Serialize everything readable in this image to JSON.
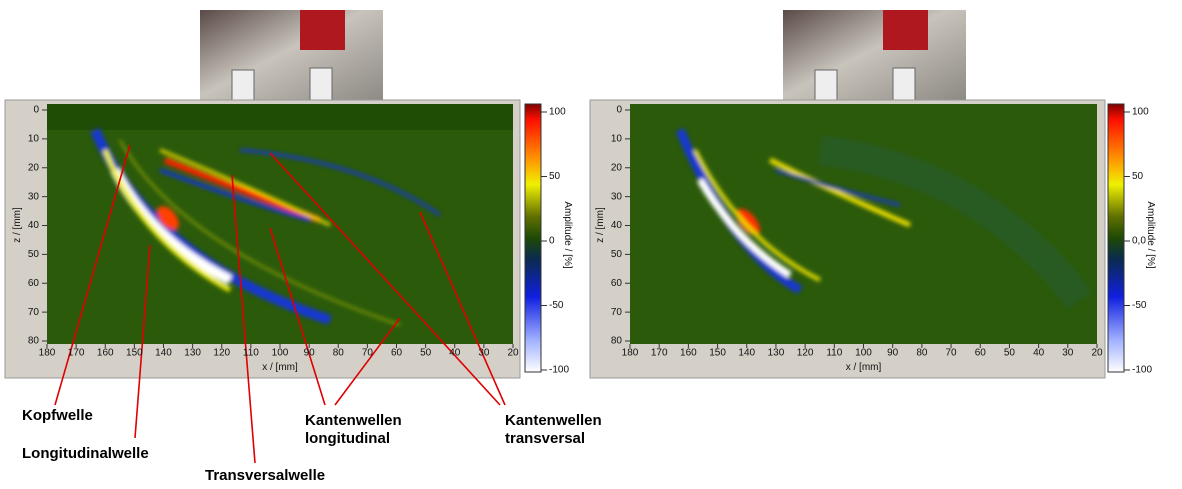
{
  "panels": [
    {
      "x_label": "x / [mm]",
      "y_label": "z / [mm]",
      "x_ticks": [
        180,
        170,
        160,
        150,
        140,
        130,
        120,
        110,
        100,
        90,
        80,
        70,
        60,
        50,
        40,
        30,
        20
      ],
      "y_ticks": [
        0,
        10,
        20,
        30,
        40,
        50,
        60,
        70,
        80
      ],
      "colorbar_label": "Amplitude / [%]",
      "colorbar_ticks": [
        100,
        50,
        0,
        -50,
        -100
      ]
    },
    {
      "x_label": "x / [mm]",
      "y_label": "z / [mm]",
      "x_ticks": [
        180,
        170,
        160,
        150,
        140,
        130,
        120,
        110,
        100,
        90,
        80,
        70,
        60,
        50,
        40,
        30,
        20
      ],
      "y_ticks": [
        0,
        10,
        20,
        30,
        40,
        50,
        60,
        70,
        80
      ],
      "colorbar_label": "Amplitude / [%]",
      "colorbar_ticks": [
        100,
        50,
        "0,0",
        -50,
        -100
      ]
    }
  ],
  "annotations": [
    {
      "lines": [
        "Kopfwelle"
      ]
    },
    {
      "lines": [
        "Longitudinalwelle"
      ]
    },
    {
      "lines": [
        "Transversalwelle"
      ]
    },
    {
      "lines": [
        "Kantenwellen",
        "longitudinal"
      ]
    },
    {
      "lines": [
        "Kantenwellen",
        "transversal"
      ]
    }
  ]
}
